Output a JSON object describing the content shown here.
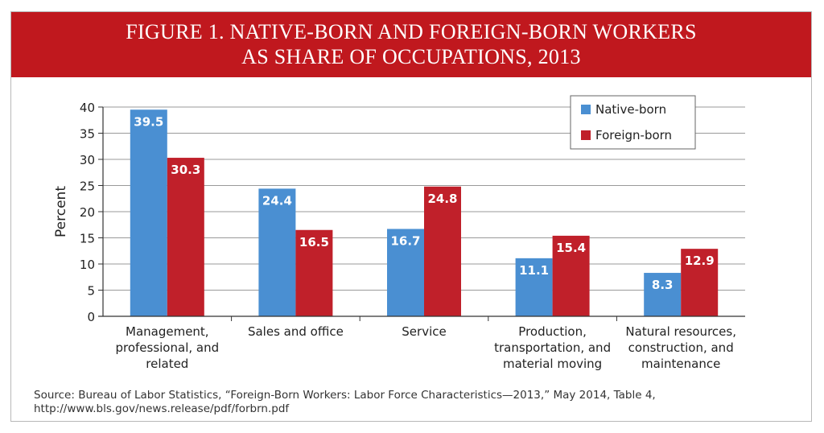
{
  "title_lines": [
    "FIGURE 1. NATIVE-BORN AND FOREIGN-BORN WORKERS",
    "AS SHARE OF OCCUPATIONS, 2013"
  ],
  "source_lines": [
    "Source: Bureau of Labor Statistics, “Foreign-Born Workers: Labor Force Characteristics—2013,” May 2014, Table 4,",
    "http://www.bls.gov/news.release/pdf/forbrn.pdf"
  ],
  "colors": {
    "banner": "#c0181e",
    "native": "#4a8fd2",
    "foreign": "#c0202a",
    "grid": "#9a9a9a",
    "axis": "#333333"
  },
  "chart_data": {
    "type": "bar",
    "ylabel": "Percent",
    "ylim": [
      0,
      40
    ],
    "yticks": [
      0,
      5,
      10,
      15,
      20,
      25,
      30,
      35,
      40
    ],
    "grid": true,
    "legend_position": "top-right",
    "categories": [
      [
        "Management,",
        "professional, and",
        "related"
      ],
      [
        "Sales and office"
      ],
      [
        "Service"
      ],
      [
        "Production,",
        "transportation, and",
        "material moving"
      ],
      [
        "Natural resources,",
        "construction, and",
        "maintenance"
      ]
    ],
    "series": [
      {
        "name": "Native-born",
        "color": "#4a8fd2",
        "values": [
          39.5,
          24.4,
          16.7,
          11.1,
          8.3
        ]
      },
      {
        "name": "Foreign-born",
        "color": "#c0202a",
        "values": [
          30.3,
          16.5,
          24.8,
          15.4,
          12.9
        ]
      }
    ]
  }
}
